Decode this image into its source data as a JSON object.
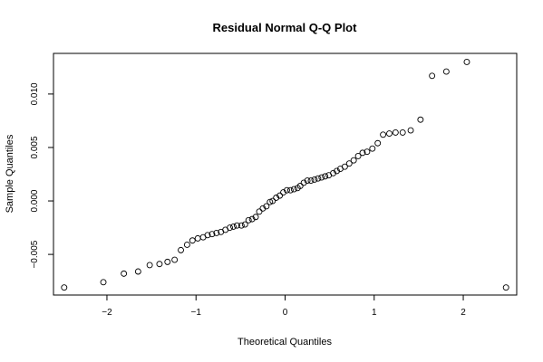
{
  "chart_data": {
    "type": "scatter",
    "title": "Residual Normal Q-Q Plot",
    "xlabel": "Theoretical Quantiles",
    "ylabel": "Sample Quantiles",
    "xlim": [
      -2.6,
      2.6
    ],
    "ylim": [
      -0.0088,
      0.0138
    ],
    "x_ticks": [
      -2,
      -1,
      0,
      1,
      2
    ],
    "y_ticks": [
      -0.005,
      0.0,
      0.005,
      0.01
    ],
    "x_tick_labels": [
      "−2",
      "−1",
      "0",
      "1",
      "2"
    ],
    "y_tick_labels": [
      "−0.005",
      "0.000",
      "0.005",
      "0.010"
    ],
    "grid": false,
    "legend": "none",
    "x": [
      -2.48,
      -2.04,
      -1.81,
      -1.65,
      -1.52,
      -1.41,
      -1.32,
      -1.24,
      -1.17,
      -1.1,
      -1.04,
      -0.98,
      -0.92,
      -0.87,
      -0.82,
      -0.77,
      -0.72,
      -0.67,
      -0.62,
      -0.58,
      -0.54,
      -0.49,
      -0.45,
      -0.41,
      -0.37,
      -0.33,
      -0.29,
      -0.25,
      -0.21,
      -0.17,
      -0.14,
      -0.1,
      -0.06,
      -0.02,
      0.02,
      0.06,
      0.1,
      0.14,
      0.17,
      0.21,
      0.25,
      0.29,
      0.33,
      0.37,
      0.41,
      0.45,
      0.49,
      0.54,
      0.58,
      0.62,
      0.67,
      0.72,
      0.77,
      0.82,
      0.87,
      0.92,
      0.98,
      1.04,
      1.1,
      1.17,
      1.24,
      1.32,
      1.41,
      1.52,
      1.65,
      1.81,
      2.04,
      2.48
    ],
    "y": [
      -0.0081,
      -0.0076,
      -0.0068,
      -0.0066,
      -0.006,
      -0.0059,
      -0.0057,
      -0.0055,
      -0.0046,
      -0.0041,
      -0.0037,
      -0.0035,
      -0.0034,
      -0.0032,
      -0.0031,
      -0.003,
      -0.0029,
      -0.0027,
      -0.0025,
      -0.0024,
      -0.0023,
      -0.0023,
      -0.0022,
      -0.0018,
      -0.0017,
      -0.0015,
      -0.001,
      -0.0007,
      -0.0005,
      -0.0001,
      0.0,
      0.0003,
      0.0005,
      0.0008,
      0.001,
      0.001,
      0.0011,
      0.0012,
      0.0014,
      0.0017,
      0.0019,
      0.0019,
      0.002,
      0.0021,
      0.0022,
      0.0023,
      0.0024,
      0.0026,
      0.0028,
      0.003,
      0.0032,
      0.0035,
      0.0038,
      0.0042,
      0.0045,
      0.0046,
      0.0049,
      0.0054,
      0.0062,
      0.0063,
      0.0064,
      0.0064,
      0.0066,
      0.0076,
      0.0117,
      0.0121,
      0.013,
      -0.0081
    ]
  }
}
